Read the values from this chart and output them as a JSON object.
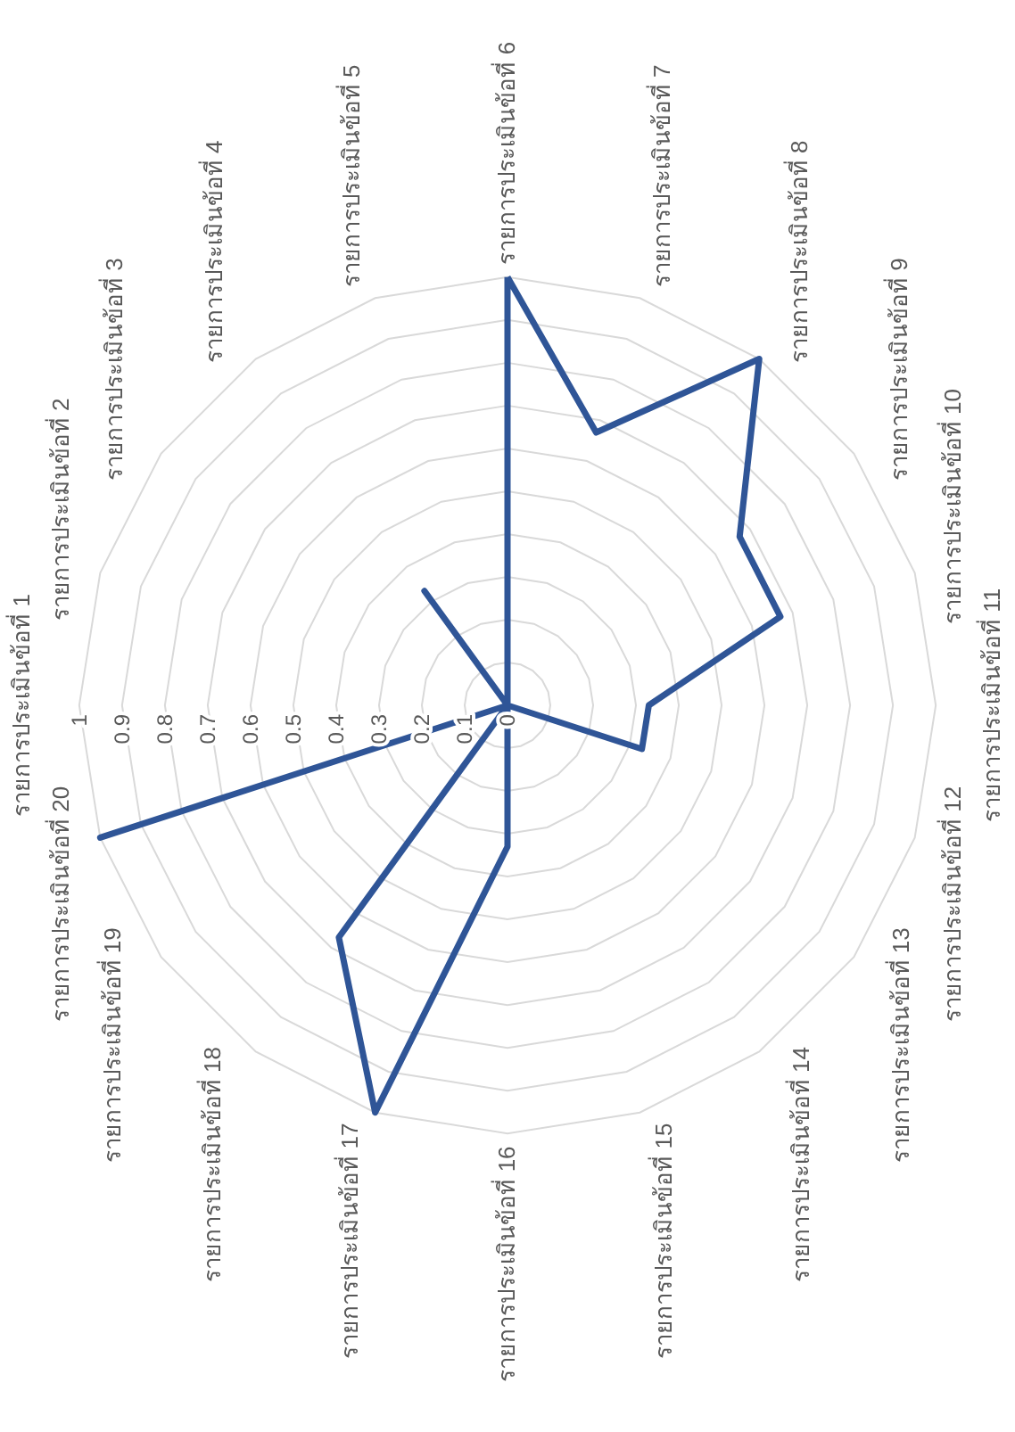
{
  "chart_data": {
    "type": "radar",
    "categories": [
      "รายการประเมินข้อที่ 6",
      "รายการประเมินข้อที่ 7",
      "รายการประเมินข้อที่ 8",
      "รายการประเมินข้อที่ 9",
      "รายการประเมินข้อที่ 10",
      "รายการประเมินข้อที่ 11",
      "รายการประเมินข้อที่ 12",
      "รายการประเมินข้อที่ 13",
      "รายการประเมินข้อที่ 14",
      "รายการประเมินข้อที่ 15",
      "รายการประเมินข้อที่ 16",
      "รายการประเมินข้อที่ 17",
      "รายการประเมินข้อที่ 18",
      "รายการประเมินข้อที่ 19",
      "รายการประเมินข้อที่ 20",
      "รายการประเมินข้อที่ 1",
      "รายการประเมินข้อที่ 2",
      "รายการประเมินข้อที่ 3",
      "รายการประเมินข้อที่ 4",
      "รายการประเมินข้อที่ 5"
    ],
    "series": [
      {
        "color": "#2f5597",
        "values": [
          1,
          0.67,
          1,
          0.67,
          0.67,
          0.33,
          0.33,
          0,
          0,
          0,
          0.33,
          1,
          0.67,
          0,
          1,
          0,
          0,
          0,
          0.33,
          0
        ]
      }
    ],
    "ylim": [
      0,
      1
    ],
    "yticks": [
      0,
      0.1,
      0.2,
      0.3,
      0.4,
      0.5,
      0.6,
      0.7,
      0.8,
      0.9,
      1
    ],
    "grid": true
  }
}
